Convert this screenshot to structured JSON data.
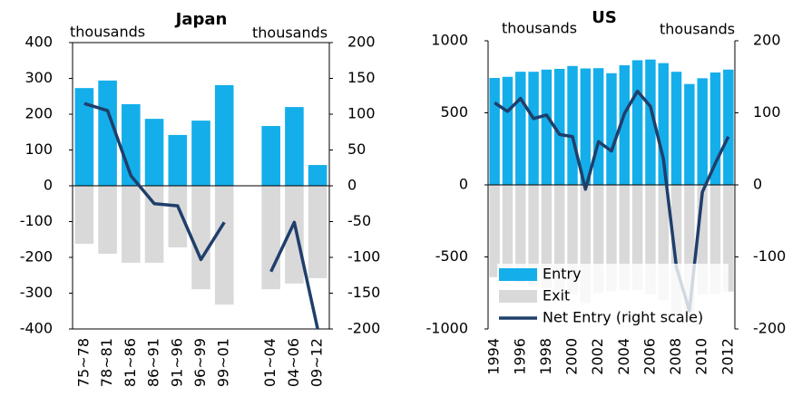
{
  "chart_data": [
    {
      "type": "combo",
      "title": "Japan",
      "ylabel": "thousands",
      "y2label": "thousands",
      "categories": [
        "75~78",
        "78~81",
        "81~86",
        "86~91",
        "91~96",
        "96~99",
        "99~01",
        null,
        "01~04",
        "04~06",
        "09~12"
      ],
      "series": [
        {
          "type": "bar",
          "color": "#14aeea",
          "values": [
            273,
            294,
            228,
            187,
            142,
            182,
            281,
            null,
            167,
            220,
            58
          ]
        },
        {
          "type": "bar",
          "color": "#d9d9d9",
          "values": [
            -162,
            -190,
            -215,
            -215,
            -172,
            -289,
            -332,
            null,
            -289,
            -273,
            -258
          ]
        },
        {
          "type": "line",
          "color": "#1f3f6b",
          "axis": "y2",
          "values": [
            115,
            105,
            14,
            -25,
            -28,
            -103,
            -51,
            null,
            -120,
            -51,
            -200
          ]
        }
      ],
      "ylim": [
        -400,
        400
      ],
      "yticks": [
        -400,
        -300,
        -200,
        -100,
        0,
        100,
        200,
        300,
        400
      ],
      "y2lim": [
        -200,
        200
      ],
      "y2ticks": [
        -200,
        -150,
        -100,
        -50,
        0,
        50,
        100,
        150,
        200
      ]
    },
    {
      "type": "combo",
      "title": "US",
      "ylabel": "thousands",
      "y2label": "thousands",
      "categories": [
        "1994",
        null,
        "1996",
        null,
        "1998",
        null,
        "2000",
        null,
        "2002",
        null,
        "2004",
        null,
        "2006",
        null,
        "2008",
        null,
        "2010",
        null,
        "2012"
      ],
      "series": [
        {
          "name": "Entry",
          "type": "bar",
          "color": "#14aeea",
          "values": [
            742,
            750,
            785,
            785,
            800,
            805,
            825,
            808,
            810,
            775,
            830,
            865,
            870,
            845,
            785,
            700,
            740,
            780,
            800
          ]
        },
        {
          "name": "Exit",
          "type": "bar",
          "color": "#d9d9d9",
          "values": [
            -640,
            -670,
            -680,
            -700,
            -720,
            -730,
            -760,
            -820,
            -750,
            -740,
            -730,
            -730,
            -760,
            -800,
            -900,
            -880,
            -760,
            -755,
            -740
          ]
        },
        {
          "name": "Net Entry (right scale)",
          "type": "line",
          "color": "#1f3f6b",
          "axis": "y2",
          "values": [
            114,
            102,
            120,
            92,
            97,
            70,
            67,
            -6,
            60,
            47,
            99,
            130,
            109,
            36,
            -114,
            -175,
            -10,
            30,
            67
          ]
        }
      ],
      "ylim": [
        -1000,
        1000
      ],
      "yticks": [
        -1000,
        -500,
        0,
        500,
        1000
      ],
      "y2lim": [
        -200,
        200
      ],
      "y2ticks": [
        -200,
        -100,
        0,
        100,
        200
      ],
      "legend": "lower left"
    }
  ]
}
